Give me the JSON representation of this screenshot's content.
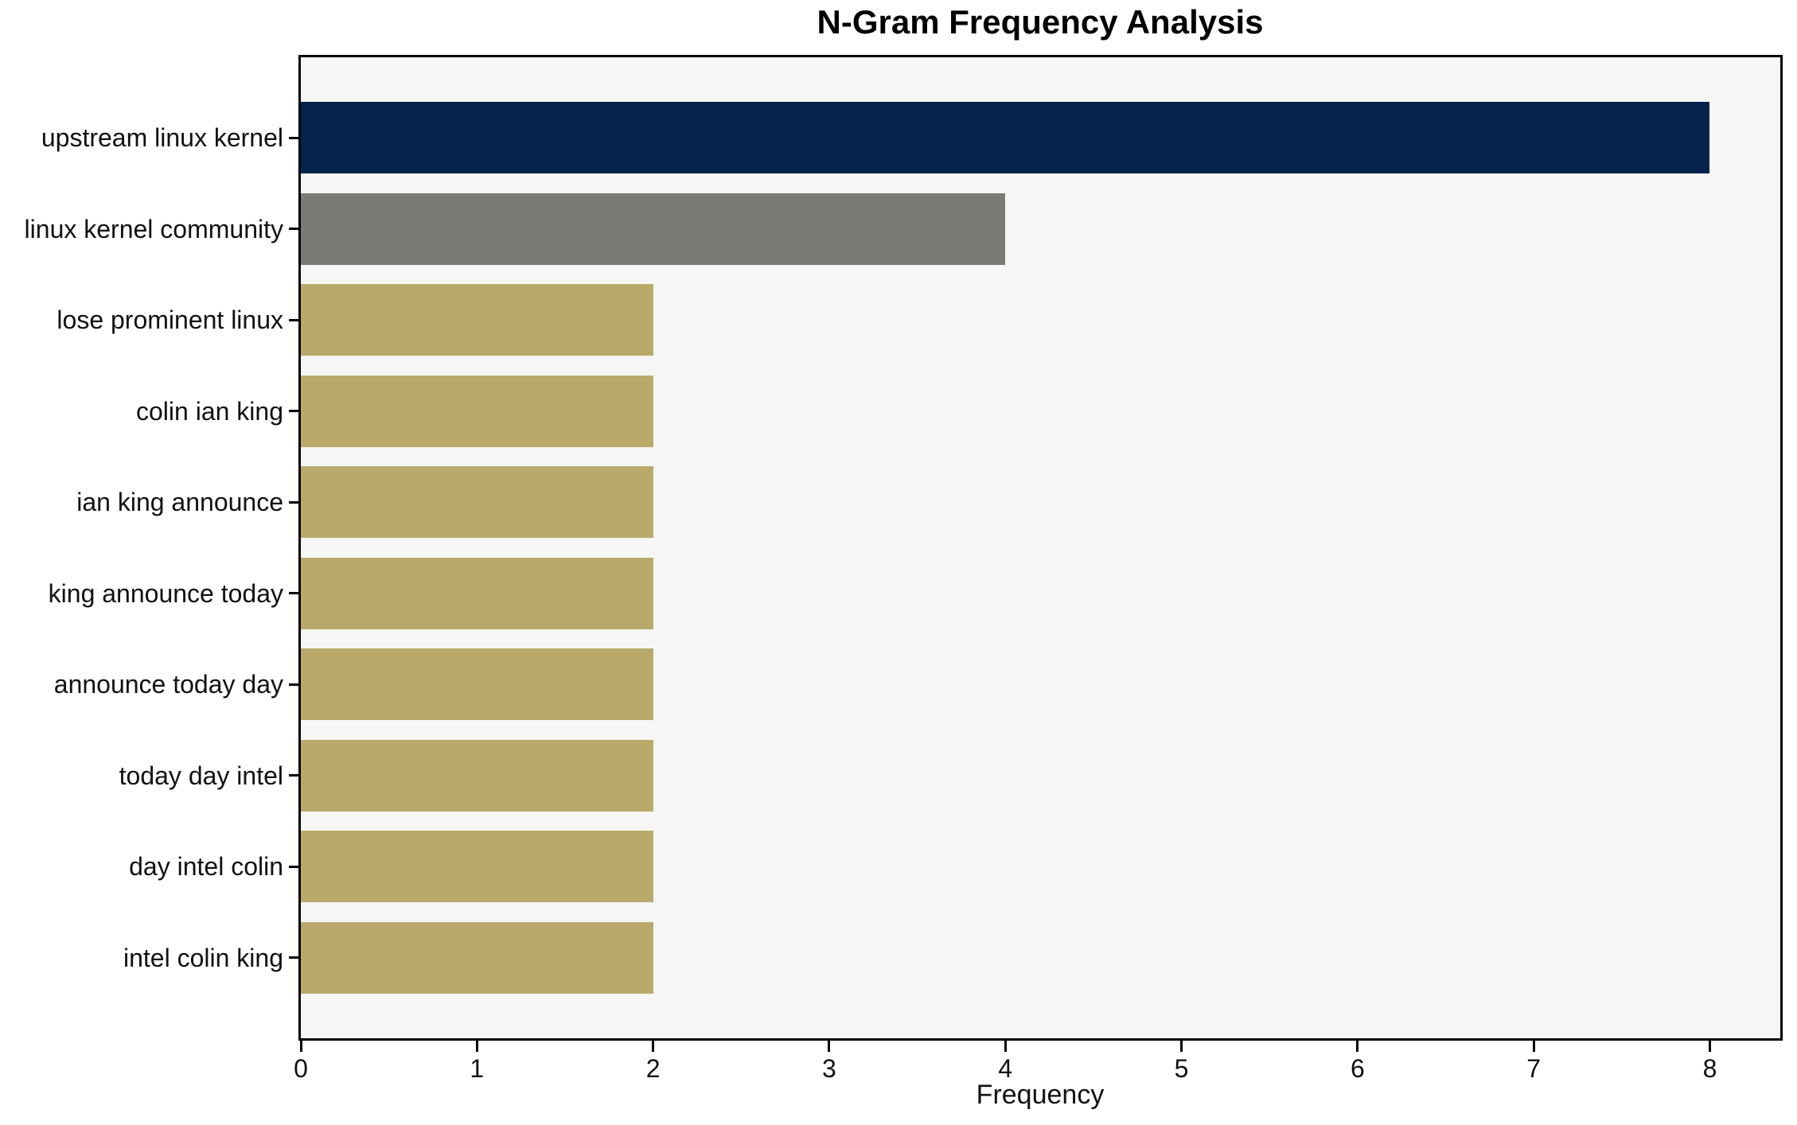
{
  "chart_data": {
    "type": "bar",
    "orientation": "horizontal",
    "title": "N-Gram Frequency Analysis",
    "xlabel": "Frequency",
    "ylabel": "",
    "categories": [
      "upstream linux kernel",
      "linux kernel community",
      "lose prominent linux",
      "colin ian king",
      "ian king announce",
      "king announce today",
      "announce today day",
      "today day intel",
      "day intel colin",
      "intel colin king"
    ],
    "values": [
      8,
      4,
      2,
      2,
      2,
      2,
      2,
      2,
      2,
      2
    ],
    "bar_colors": [
      "#03234e",
      "#7a7a76",
      "#b9aa6b",
      "#b9aa6b",
      "#b9aa6b",
      "#b9aa6b",
      "#b9aa6b",
      "#b9aa6b",
      "#b9aa6b",
      "#b9aa6b"
    ],
    "x_ticks": [
      0,
      1,
      2,
      3,
      4,
      5,
      6,
      7,
      8
    ],
    "xlim": [
      0,
      8.4
    ],
    "grid": false,
    "legend": "none",
    "colors": {
      "plot_background": "#f6f6f4",
      "figure_background": "#ffffff",
      "spine": "#000000",
      "text": "#111111"
    }
  }
}
